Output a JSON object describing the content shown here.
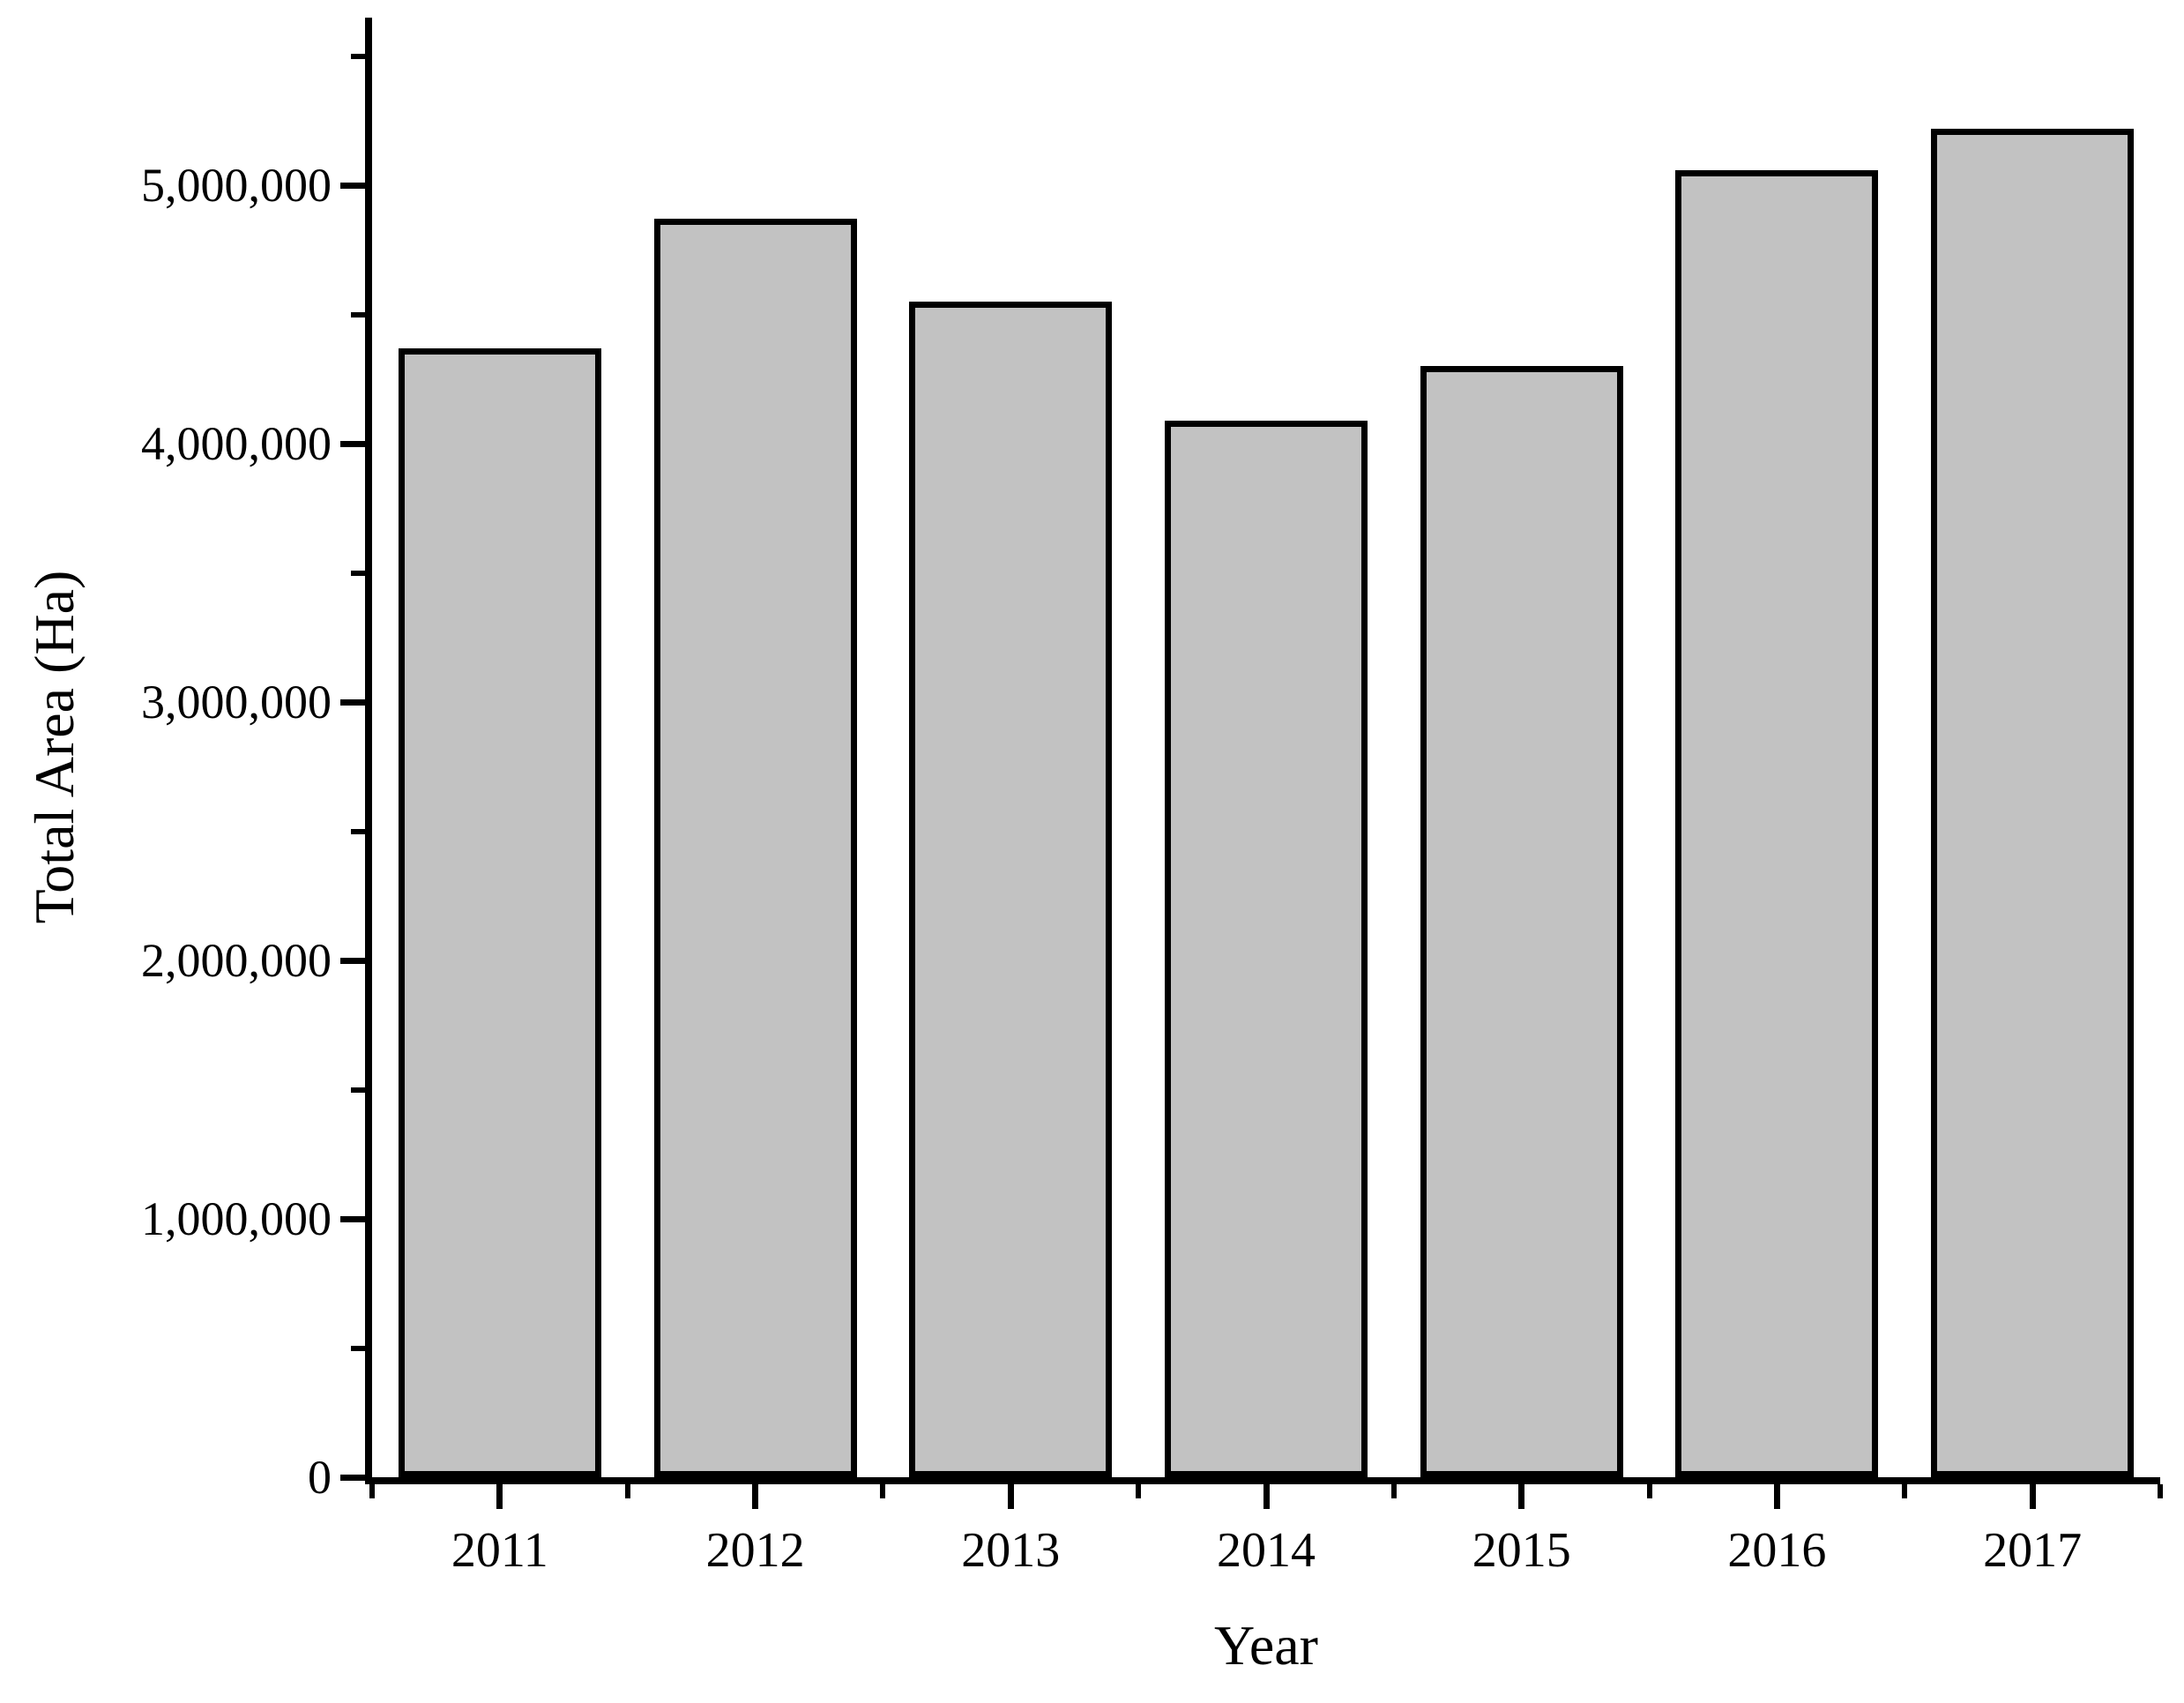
{
  "chart_data": {
    "type": "bar",
    "title": "",
    "xlabel": "Year",
    "ylabel": "Total Area (Ha)",
    "categories": [
      "2011",
      "2012",
      "2013",
      "2014",
      "2015",
      "2016",
      "2017"
    ],
    "values": [
      4370000,
      4870000,
      4550000,
      4090000,
      4300000,
      5060000,
      5220000
    ],
    "series_name": "Total Area (Ha)",
    "ylim": [
      0,
      5650000
    ],
    "y_major_ticks": [
      {
        "value": 0,
        "label": "0"
      },
      {
        "value": 1000000,
        "label": "1,000,000"
      },
      {
        "value": 2000000,
        "label": "2,000,000"
      },
      {
        "value": 3000000,
        "label": "3,000,000"
      },
      {
        "value": 4000000,
        "label": "4,000,000"
      },
      {
        "value": 5000000,
        "label": "5,000,000"
      }
    ],
    "y_minor_values": [
      500000,
      1500000,
      2500000,
      3500000,
      4500000,
      5500000
    ],
    "grid": false,
    "legend": null,
    "colors": {
      "background": "#ffffff",
      "bar_fill": "#c2c2c2",
      "bar_border": "#000000",
      "axis": "#000000",
      "text": "#000000"
    }
  }
}
